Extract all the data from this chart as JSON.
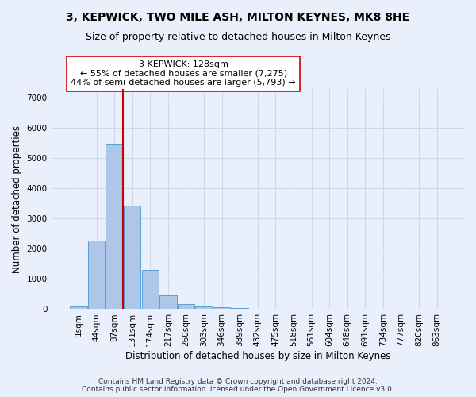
{
  "title1": "3, KEPWICK, TWO MILE ASH, MILTON KEYNES, MK8 8HE",
  "title2": "Size of property relative to detached houses in Milton Keynes",
  "xlabel": "Distribution of detached houses by size in Milton Keynes",
  "ylabel": "Number of detached properties",
  "footnote1": "Contains HM Land Registry data © Crown copyright and database right 2024.",
  "footnote2": "Contains public sector information licensed under the Open Government Licence v3.0.",
  "bar_labels": [
    "1sqm",
    "44sqm",
    "87sqm",
    "131sqm",
    "174sqm",
    "217sqm",
    "260sqm",
    "303sqm",
    "346sqm",
    "389sqm",
    "432sqm",
    "475sqm",
    "518sqm",
    "561sqm",
    "604sqm",
    "648sqm",
    "691sqm",
    "734sqm",
    "777sqm",
    "820sqm",
    "863sqm"
  ],
  "bar_values": [
    80,
    2280,
    5480,
    3440,
    1310,
    460,
    160,
    100,
    60,
    40,
    0,
    0,
    0,
    0,
    0,
    0,
    0,
    0,
    0,
    0,
    0
  ],
  "bar_color": "#aec6e8",
  "bar_edge_color": "#5a9fd4",
  "ylim": [
    0,
    7300
  ],
  "yticks": [
    0,
    1000,
    2000,
    3000,
    4000,
    5000,
    6000,
    7000
  ],
  "vline_x": 2.5,
  "vline_color": "#cc0000",
  "annotation_text": "3 KEPWICK: 128sqm\n← 55% of detached houses are smaller (7,275)\n44% of semi-detached houses are larger (5,793) →",
  "annotation_box_color": "#ffffff",
  "annotation_box_edge_color": "#cc0000",
  "bg_color": "#eaf0fb",
  "grid_color": "#d0d8e8",
  "title1_fontsize": 10,
  "title2_fontsize": 9,
  "xlabel_fontsize": 8.5,
  "ylabel_fontsize": 8.5,
  "tick_fontsize": 7.5,
  "annotation_fontsize": 8,
  "footnote_fontsize": 6.5
}
